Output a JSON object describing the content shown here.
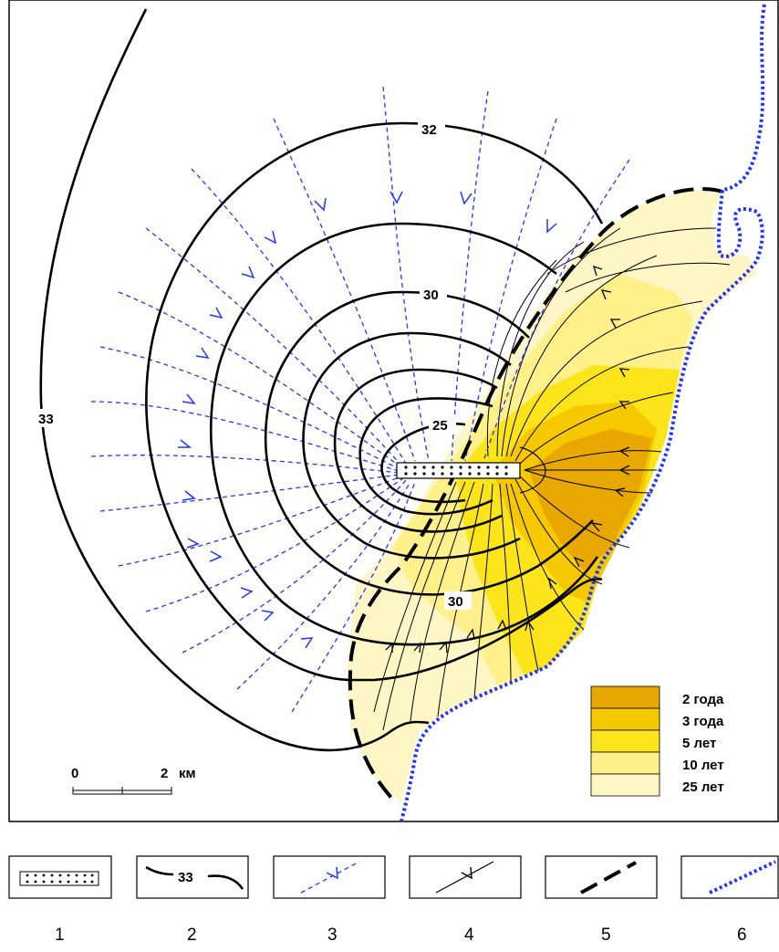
{
  "contour_labels": {
    "outer_33": "33",
    "c32": "32",
    "c30_top": "30",
    "c25": "25",
    "c30_bottom": "30"
  },
  "scale_bar": {
    "start": "0",
    "end": "2",
    "unit": "км"
  },
  "time_legend": [
    {
      "label": "2 года",
      "color": "#e8a800"
    },
    {
      "label": "3 года",
      "color": "#f6c800"
    },
    {
      "label": "5 лет",
      "color": "#fbe41a"
    },
    {
      "label": "10 лет",
      "color": "#fff08a"
    },
    {
      "label": "25 лет",
      "color": "#fff6c6"
    }
  ],
  "symbol_legend": {
    "box2_label": "33",
    "numbers": [
      "1",
      "2",
      "3",
      "4",
      "5",
      "6"
    ]
  },
  "colors": {
    "contour": "#000000",
    "flowline_dashed": "#1f35ff",
    "shore_dotted": "#1f35ff"
  }
}
